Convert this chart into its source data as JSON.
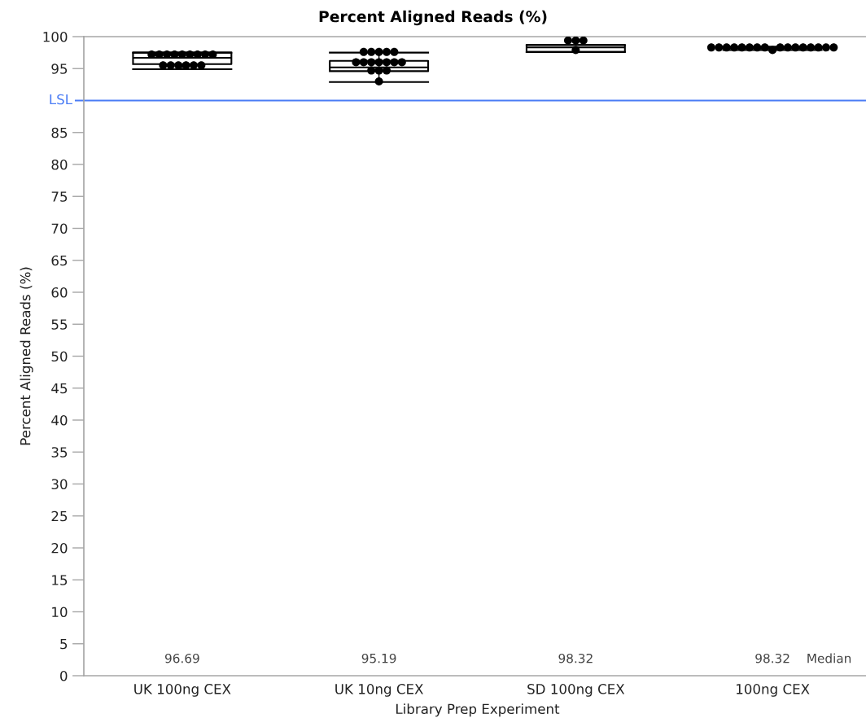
{
  "chart_data": {
    "type": "box",
    "title": "Percent Aligned Reads (%)",
    "xlabel": "Library Prep Experiment",
    "ylabel": "Percent Aligned Reads (%)",
    "categories": [
      "UK 100ng CEX",
      "UK 10ng CEX",
      "SD 100ng CEX",
      "100ng CEX"
    ],
    "boxes": [
      {
        "low": 94.9,
        "q1": 95.7,
        "median": 96.69,
        "q3": 97.5,
        "high": 97.5
      },
      {
        "low": 92.9,
        "q1": 94.6,
        "median": 95.19,
        "q3": 96.2,
        "high": 97.5
      },
      {
        "low": 97.6,
        "q1": 97.6,
        "median": 98.32,
        "q3": 98.7,
        "high": 98.7
      },
      {
        "low": 97.9,
        "q1": 98.2,
        "median": 98.32,
        "q3": 98.4,
        "high": 98.4
      }
    ],
    "value_labels": [
      "96.69",
      "95.19",
      "98.32",
      "98.32"
    ],
    "series": [
      {
        "type": "scatter",
        "color": "#000000",
        "x": [
          "UK 100ng CEX",
          "UK 100ng CEX",
          "UK 100ng CEX",
          "UK 100ng CEX",
          "UK 100ng CEX",
          "UK 100ng CEX",
          "UK 100ng CEX",
          "UK 100ng CEX",
          "UK 100ng CEX",
          "UK 100ng CEX",
          "UK 100ng CEX",
          "UK 100ng CEX",
          "UK 100ng CEX",
          "UK 100ng CEX",
          "UK 100ng CEX",
          "UK 10ng CEX",
          "UK 10ng CEX",
          "UK 10ng CEX",
          "UK 10ng CEX",
          "UK 10ng CEX",
          "UK 10ng CEX",
          "UK 10ng CEX",
          "UK 10ng CEX",
          "UK 10ng CEX",
          "UK 10ng CEX",
          "UK 10ng CEX",
          "UK 10ng CEX",
          "UK 10ng CEX",
          "UK 10ng CEX",
          "UK 10ng CEX",
          "UK 10ng CEX",
          "SD 100ng CEX",
          "SD 100ng CEX",
          "SD 100ng CEX",
          "SD 100ng CEX",
          "100ng CEX",
          "100ng CEX",
          "100ng CEX",
          "100ng CEX",
          "100ng CEX",
          "100ng CEX",
          "100ng CEX",
          "100ng CEX",
          "100ng CEX",
          "100ng CEX",
          "100ng CEX",
          "100ng CEX",
          "100ng CEX",
          "100ng CEX",
          "100ng CEX",
          "100ng CEX",
          "100ng CEX"
        ],
        "values": [
          97.2,
          97.2,
          97.2,
          97.2,
          97.2,
          97.2,
          97.2,
          97.2,
          97.2,
          95.5,
          95.5,
          95.5,
          95.5,
          95.5,
          95.5,
          97.6,
          97.6,
          97.6,
          97.6,
          97.6,
          96.0,
          96.0,
          96.0,
          96.0,
          96.0,
          96.0,
          96.0,
          94.7,
          94.7,
          94.7,
          93.0,
          99.4,
          99.4,
          99.4,
          97.9,
          98.3,
          98.3,
          98.3,
          98.3,
          98.3,
          98.3,
          98.3,
          98.3,
          97.9,
          98.3,
          98.3,
          98.3,
          98.3,
          98.3,
          98.3,
          98.3,
          98.3
        ]
      }
    ],
    "marker": "circle",
    "ylim": [
      0,
      100
    ],
    "yticks": [
      0,
      5,
      10,
      15,
      20,
      25,
      30,
      35,
      40,
      45,
      50,
      55,
      60,
      65,
      70,
      75,
      80,
      85,
      95,
      100
    ],
    "ref_lines": [
      {
        "axis": "y",
        "value": 90,
        "label": "LSL",
        "color": "#4a7cf5"
      }
    ],
    "annotations": [
      "Median"
    ]
  }
}
